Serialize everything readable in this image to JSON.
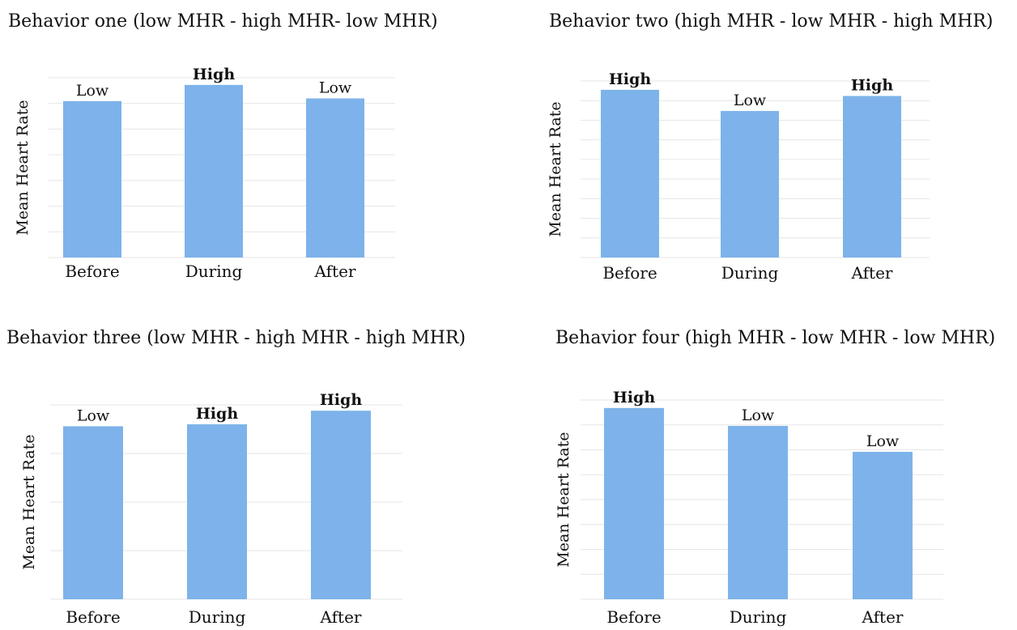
{
  "colors": {
    "bar": "#7db3ea",
    "grid": "#e6e6e6"
  },
  "chart_data": [
    {
      "type": "bar",
      "title": "Behavior one (low MHR - high MHR- low MHR)",
      "xlabel": "",
      "ylabel": "Mean Heart Rate",
      "categories": [
        "Before",
        "During",
        "After"
      ],
      "values": [
        0.87,
        0.96,
        0.885
      ],
      "data_labels": [
        "Low",
        "High",
        "Low"
      ],
      "label_bold": [
        false,
        true,
        false
      ],
      "ylim": [
        0,
        1
      ],
      "grid": true
    },
    {
      "type": "bar",
      "title": "Behavior two (high MHR - low MHR - high MHR)",
      "xlabel": "",
      "ylabel": "Mean Heart Rate",
      "categories": [
        "Before",
        "During",
        "After"
      ],
      "values": [
        0.95,
        0.83,
        0.915
      ],
      "data_labels": [
        "High",
        "Low",
        "High"
      ],
      "label_bold": [
        true,
        false,
        true
      ],
      "ylim": [
        0,
        1
      ],
      "grid": true
    },
    {
      "type": "bar",
      "title": "Behavior three (low MHR - high MHR - high MHR)",
      "xlabel": "",
      "ylabel": "Mean Heart Rate",
      "categories": [
        "Before",
        "During",
        "After"
      ],
      "values": [
        0.89,
        0.9,
        0.97
      ],
      "data_labels": [
        "Low",
        "High",
        "High"
      ],
      "label_bold": [
        false,
        true,
        true
      ],
      "ylim": [
        0,
        1
      ],
      "grid": true
    },
    {
      "type": "bar",
      "title": "Behavior four (high MHR - low MHR - low MHR)",
      "xlabel": "",
      "ylabel": "Mean Heart Rate",
      "categories": [
        "Before",
        "During",
        "After"
      ],
      "values": [
        0.96,
        0.87,
        0.74
      ],
      "data_labels": [
        "High",
        "Low",
        "Low"
      ],
      "label_bold": [
        true,
        false,
        false
      ],
      "ylim": [
        0,
        1
      ],
      "grid": true
    }
  ]
}
